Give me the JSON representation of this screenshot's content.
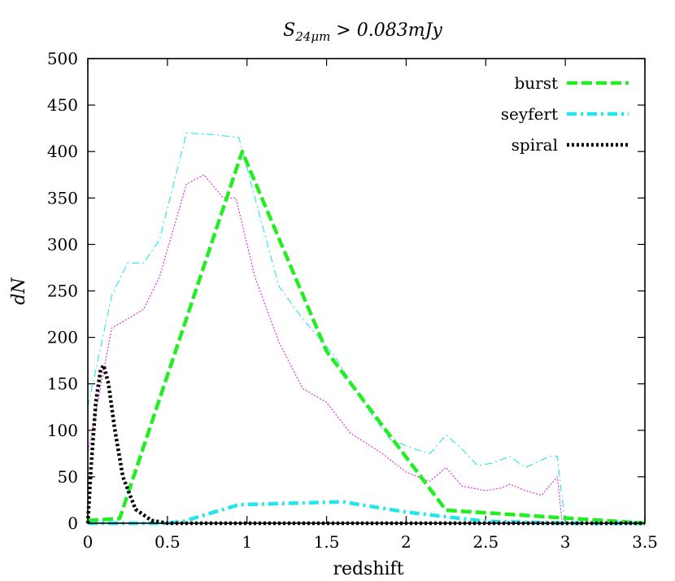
{
  "chart_data": {
    "type": "line",
    "title": "S_24μm > 0.083mJy",
    "title_parts": {
      "main": "S",
      "sub": "24μm",
      "rest": " > 0.083mJy"
    },
    "xlabel": "redshift",
    "ylabel": "dN",
    "xlim": [
      0,
      3.5
    ],
    "ylim": [
      0,
      500
    ],
    "xticks": [
      0,
      0.5,
      1,
      1.5,
      2,
      2.5,
      3,
      3.5
    ],
    "xtick_labels": [
      "0",
      "0.5",
      "1",
      "1.5",
      "2",
      "2.5",
      "3",
      "3.5"
    ],
    "yticks": [
      0,
      50,
      100,
      150,
      200,
      250,
      300,
      350,
      400,
      450,
      500
    ],
    "ytick_labels": [
      "0",
      "50",
      "100",
      "150",
      "200",
      "250",
      "300",
      "350",
      "400",
      "450",
      "500"
    ],
    "legend_position": "top-right",
    "series": [
      {
        "name": "burst",
        "in_legend": true,
        "color": "#22ee22",
        "style": "dashed-thick",
        "x": [
          0,
          0.2,
          0.97,
          1.5,
          2.25,
          3.5
        ],
        "y": [
          3,
          5,
          400,
          185,
          14,
          0
        ]
      },
      {
        "name": "seyfert",
        "in_legend": true,
        "color": "#22e6ee",
        "style": "dashdot-thick",
        "x": [
          0,
          0.5,
          0.6,
          0.95,
          1.6,
          2.0,
          2.5,
          3.0,
          3.5
        ],
        "y": [
          0,
          0,
          2,
          20,
          23,
          12,
          2,
          0,
          0
        ]
      },
      {
        "name": "spiral",
        "in_legend": true,
        "color": "#000000",
        "style": "dotted-thick",
        "x": [
          0,
          0.02,
          0.05,
          0.08,
          0.1,
          0.13,
          0.17,
          0.22,
          0.3,
          0.4,
          0.5,
          3.5
        ],
        "y": [
          0,
          60,
          130,
          165,
          170,
          150,
          100,
          50,
          15,
          3,
          0,
          0
        ]
      },
      {
        "name": "total-thin-dashdot",
        "in_legend": false,
        "color": "#22e6ee",
        "style": "dashdot-thin",
        "x": [
          0,
          0.15,
          0.25,
          0.35,
          0.45,
          0.62,
          0.8,
          0.95,
          1.05,
          1.2,
          1.35,
          1.55,
          1.75,
          1.9,
          2.05,
          2.15,
          2.25,
          2.35,
          2.45,
          2.55,
          2.65,
          2.75,
          2.9,
          2.95,
          2.97,
          3.0
        ],
        "y": [
          125,
          245,
          280,
          280,
          305,
          420,
          418,
          415,
          350,
          255,
          220,
          180,
          125,
          90,
          80,
          75,
          95,
          80,
          62,
          65,
          72,
          60,
          72,
          72,
          40,
          0
        ]
      },
      {
        "name": "total-thin-dotted",
        "in_legend": false,
        "color": "#e020e0",
        "style": "dotted-thin",
        "x": [
          0,
          0.15,
          0.35,
          0.45,
          0.62,
          0.73,
          0.85,
          0.93,
          1.05,
          1.2,
          1.35,
          1.5,
          1.65,
          1.85,
          2.0,
          2.15,
          2.25,
          2.35,
          2.5,
          2.6,
          2.65,
          2.75,
          2.85,
          2.95,
          2.98
        ],
        "y": [
          75,
          210,
          230,
          265,
          365,
          375,
          350,
          350,
          265,
          195,
          145,
          130,
          97,
          75,
          55,
          45,
          60,
          40,
          35,
          38,
          42,
          35,
          30,
          50,
          0
        ]
      }
    ]
  }
}
